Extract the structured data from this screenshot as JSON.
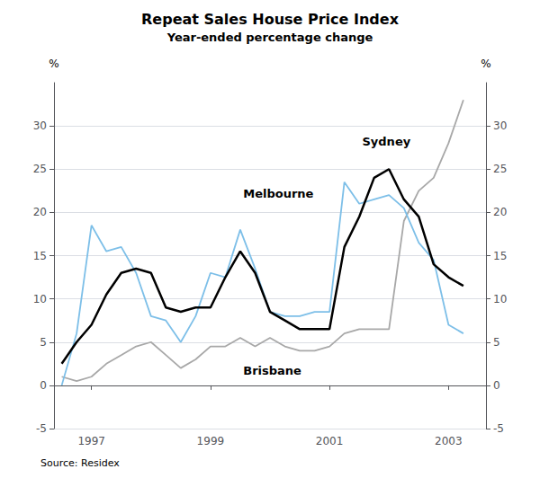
{
  "chart_data": {
    "type": "line",
    "title": "Repeat Sales House Price Index",
    "subtitle": "Year-ended percentage change",
    "source": "Source: Residex",
    "ylabel": "%",
    "y2label": "%",
    "x": [
      1996.5,
      1996.75,
      1997.0,
      1997.25,
      1997.5,
      1997.75,
      1998.0,
      1998.25,
      1998.5,
      1998.75,
      1999.0,
      1999.25,
      1999.5,
      1999.75,
      2000.0,
      2000.25,
      2000.5,
      2000.75,
      2001.0,
      2001.25,
      2001.5,
      2001.75,
      2002.0,
      2002.25,
      2002.5,
      2002.75,
      2003.0,
      2003.25
    ],
    "series": [
      {
        "name": "Brisbane",
        "color": "#a8a8a8",
        "values": [
          1.0,
          0.5,
          1.0,
          2.5,
          3.5,
          4.5,
          5.0,
          3.5,
          2.0,
          3.0,
          4.5,
          4.5,
          5.5,
          4.5,
          5.5,
          4.5,
          4.0,
          4.0,
          4.5,
          6.0,
          6.5,
          6.5,
          6.5,
          19.0,
          22.5,
          24.0,
          28.0,
          33.0
        ]
      },
      {
        "name": "Melbourne",
        "color": "#7dbfe8",
        "values": [
          0.0,
          6.0,
          18.5,
          15.5,
          16.0,
          13.0,
          8.0,
          7.5,
          5.0,
          8.0,
          13.0,
          12.5,
          18.0,
          13.5,
          8.5,
          8.0,
          8.0,
          8.5,
          8.5,
          23.5,
          21.0,
          21.5,
          22.0,
          20.5,
          16.5,
          14.5,
          7.0,
          6.0
        ]
      },
      {
        "name": "Sydney",
        "color": "#000000",
        "values": [
          2.5,
          5.0,
          7.0,
          10.5,
          13.0,
          13.5,
          13.0,
          9.0,
          8.5,
          9.0,
          9.0,
          12.5,
          15.5,
          13.0,
          8.5,
          7.5,
          6.5,
          6.5,
          6.5,
          16.0,
          19.5,
          24.0,
          25.0,
          21.5,
          19.5,
          14.0,
          12.5,
          11.5
        ]
      }
    ],
    "annotations": [
      {
        "text": "Sydney",
        "x": 2001.55,
        "y": 27.5
      },
      {
        "text": "Melbourne",
        "x": 1999.55,
        "y": 21.5
      },
      {
        "text": "Brisbane",
        "x": 1999.55,
        "y": 1.0
      }
    ],
    "xlim": [
      1996.37,
      2003.63
    ],
    "xticks": [
      1997,
      1999,
      2001,
      2003
    ],
    "ylim": [
      -5,
      35
    ],
    "yticks": [
      -5,
      0,
      5,
      10,
      15,
      20,
      25,
      30
    ],
    "y2lim": [
      -5,
      35
    ],
    "y2ticks": [
      -5,
      0,
      5,
      10,
      15,
      20,
      25,
      30
    ],
    "grid": true
  }
}
